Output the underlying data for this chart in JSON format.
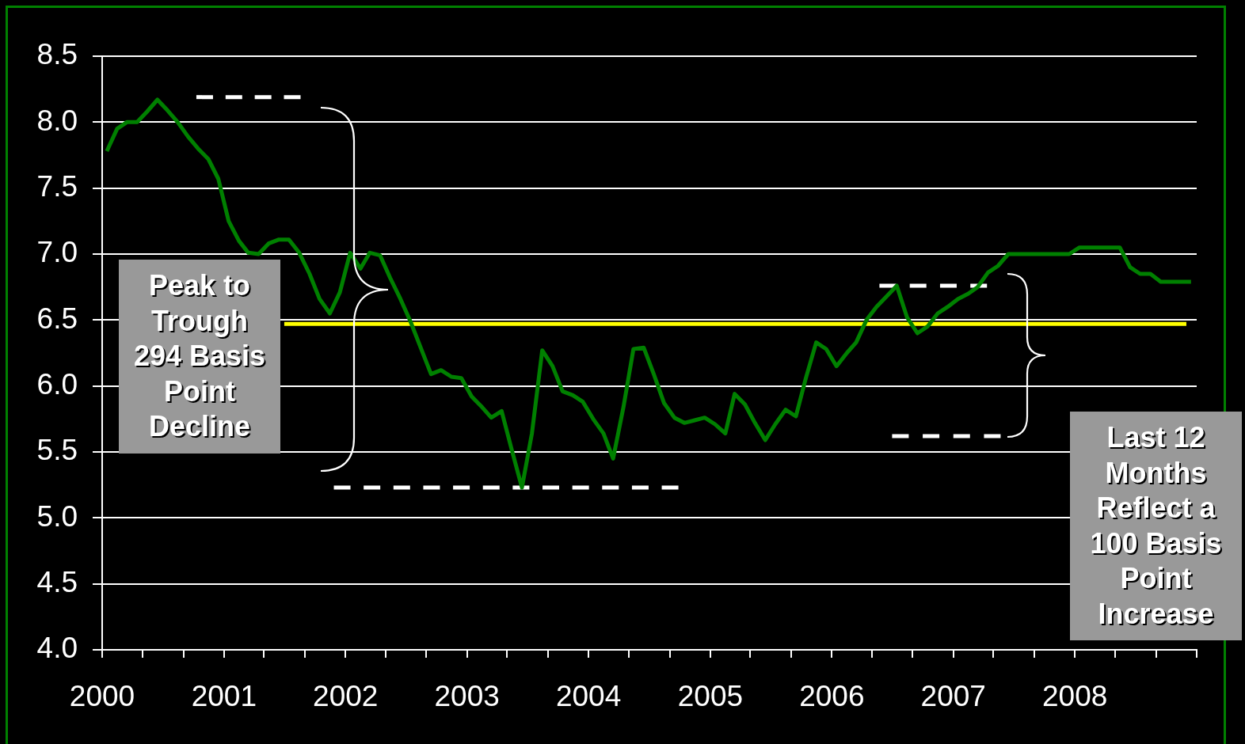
{
  "chart_data": {
    "type": "line",
    "xlim": [
      "2000",
      "2009"
    ],
    "xticks": [
      {
        "value": "2000",
        "label": "2000"
      },
      {
        "value": "2000-05",
        "label": null
      },
      {
        "value": "2000-09",
        "label": null
      },
      {
        "value": "2001",
        "label": "2001"
      },
      {
        "value": "2001-05",
        "label": null
      },
      {
        "value": "2001-09",
        "label": null
      },
      {
        "value": "2002",
        "label": "2002"
      },
      {
        "value": "2002-05",
        "label": null
      },
      {
        "value": "2002-09",
        "label": null
      },
      {
        "value": "2003",
        "label": "2003"
      },
      {
        "value": "2003-05",
        "label": null
      },
      {
        "value": "2003-09",
        "label": null
      },
      {
        "value": "2004",
        "label": "2004"
      },
      {
        "value": "2004-05",
        "label": null
      },
      {
        "value": "2004-09",
        "label": null
      },
      {
        "value": "2005",
        "label": "2005"
      },
      {
        "value": "2005-05",
        "label": null
      },
      {
        "value": "2005-09",
        "label": null
      },
      {
        "value": "2006",
        "label": "2006"
      },
      {
        "value": "2006-05",
        "label": null
      },
      {
        "value": "2006-09",
        "label": null
      },
      {
        "value": "2007",
        "label": "2007"
      },
      {
        "value": "2007-05",
        "label": null
      },
      {
        "value": "2007-09",
        "label": null
      },
      {
        "value": "2008",
        "label": "2008"
      },
      {
        "value": "2008-05",
        "label": null
      },
      {
        "value": "2008-09",
        "label": null
      },
      {
        "value": "2009",
        "label": null
      }
    ],
    "ylim": [
      4,
      8.5
    ],
    "yticks": [
      {
        "value": 4,
        "label": "4.0"
      },
      4.5,
      {
        "value": 5,
        "label": "5.0"
      },
      5.5,
      {
        "value": 6,
        "label": "6.0"
      },
      6.5,
      {
        "value": 7,
        "label": "7.0"
      },
      7.5,
      {
        "value": 8,
        "label": "8.0"
      },
      8.5
    ],
    "grid": "y",
    "series": [
      {
        "color": "#008000",
        "x": [
          "2000-01-15",
          "2000-02-15",
          "2000-03-15",
          "2000-04-15",
          "2000-05-15",
          "2000-06-15",
          "2000-07-15",
          "2000-08-15",
          "2000-09-15",
          "2000-10-15",
          "2000-11-15",
          "2000-12-15",
          "2001-01-15",
          "2001-02-15",
          "2001-03-15",
          "2001-04-15",
          "2001-05-15",
          "2001-06-15",
          "2001-07-15",
          "2001-08-15",
          "2001-09-15",
          "2001-10-15",
          "2001-11-15",
          "2001-12-15",
          "2002-01-15",
          "2002-02-15",
          "2002-03-15",
          "2002-04-15",
          "2002-05-15",
          "2002-06-15",
          "2002-07-15",
          "2002-08-15",
          "2002-09-15",
          "2002-10-15",
          "2002-11-15",
          "2002-12-15",
          "2003-01-15",
          "2003-02-15",
          "2003-03-15",
          "2003-04-15",
          "2003-05-15",
          "2003-06-15",
          "2003-07-15",
          "2003-08-15",
          "2003-09-15",
          "2003-10-15",
          "2003-11-15",
          "2003-12-15",
          "2004-01-15",
          "2004-02-15",
          "2004-03-15",
          "2004-04-15",
          "2004-05-15",
          "2004-06-15",
          "2004-07-15",
          "2004-08-15",
          "2004-09-15",
          "2004-10-15",
          "2004-11-15",
          "2004-12-15",
          "2005-01-15",
          "2005-02-15",
          "2005-03-15",
          "2005-04-15",
          "2005-05-15",
          "2005-06-15",
          "2005-07-15",
          "2005-08-15",
          "2005-09-15",
          "2005-10-15",
          "2005-11-15",
          "2005-12-15",
          "2006-01-15",
          "2006-02-15",
          "2006-03-15",
          "2006-04-15",
          "2006-05-15",
          "2006-06-15",
          "2006-07-15",
          "2006-08-15",
          "2006-09-15",
          "2006-10-15",
          "2006-11-15",
          "2006-12-15",
          "2007-01-15",
          "2007-02-15",
          "2007-03-15",
          "2007-04-15",
          "2007-05-15",
          "2007-06-15",
          "2007-07-15",
          "2007-08-15",
          "2007-09-15",
          "2007-10-15",
          "2007-11-15",
          "2007-12-15",
          "2008-01-15",
          "2008-02-15",
          "2008-03-15",
          "2008-04-15",
          "2008-05-15",
          "2008-06-15",
          "2008-07-15",
          "2008-08-15",
          "2008-09-15",
          "2008-10-15",
          "2008-11-15",
          "2008-12-15"
        ],
        "values": [
          7.78,
          7.95,
          8.0,
          8.0,
          8.08,
          8.17,
          8.09,
          8.0,
          7.89,
          7.8,
          7.72,
          7.57,
          7.25,
          7.1,
          7.01,
          7.0,
          7.08,
          7.11,
          7.11,
          7.01,
          6.85,
          6.66,
          6.55,
          6.71,
          7.01,
          6.89,
          7.01,
          6.99,
          6.82,
          6.66,
          6.49,
          6.29,
          6.09,
          6.12,
          6.07,
          6.06,
          5.92,
          5.84,
          5.76,
          5.81,
          5.52,
          5.23,
          5.64,
          6.27,
          6.15,
          5.96,
          5.93,
          5.88,
          5.75,
          5.64,
          5.45,
          5.84,
          6.28,
          6.29,
          6.09,
          5.87,
          5.76,
          5.72,
          5.74,
          5.76,
          5.71,
          5.64,
          5.94,
          5.86,
          5.72,
          5.59,
          5.71,
          5.82,
          5.77,
          6.06,
          6.33,
          6.28,
          6.15,
          6.25,
          6.33,
          6.5,
          6.6,
          6.68,
          6.76,
          6.52,
          6.4,
          6.45,
          6.55,
          6.6,
          6.66,
          6.7,
          6.75,
          6.86,
          6.91,
          7.0,
          7.0,
          7.0,
          7.0,
          7.0,
          7.0,
          7.0,
          7.05,
          7.05,
          7.05,
          7.05,
          7.05,
          6.9,
          6.85,
          6.85,
          6.79,
          6.79,
          6.79,
          6.79
        ]
      },
      {
        "color": "#ffff00",
        "x": [
          "2001-07",
          "2008-12"
        ],
        "values": [
          6.47,
          6.47
        ]
      },
      {
        "color": "#ffffff",
        "line_style": "dashed",
        "x": [
          "2000-10-10",
          "2001-08-19"
        ],
        "values": [
          8.19,
          8.19
        ]
      },
      {
        "color": "#ffffff",
        "line_style": "dashed",
        "x": [
          "2001-11-27",
          "2004-09-27"
        ],
        "values": [
          5.23,
          5.23
        ]
      },
      {
        "color": "#ffffff",
        "line_style": "dashed",
        "x": [
          "2006-05-24",
          "2007-04-12"
        ],
        "values": [
          6.76,
          6.76
        ]
      },
      {
        "color": "#ffffff",
        "line_style": "dashed",
        "x": [
          "2006-07-01",
          "2007-05-23"
        ],
        "values": [
          5.62,
          5.62
        ]
      }
    ],
    "annotations": [
      "Peak to Trough 294 Basis Point Decline",
      "Last 12 Months Reflect a 100 Basis Point Increase"
    ]
  }
}
